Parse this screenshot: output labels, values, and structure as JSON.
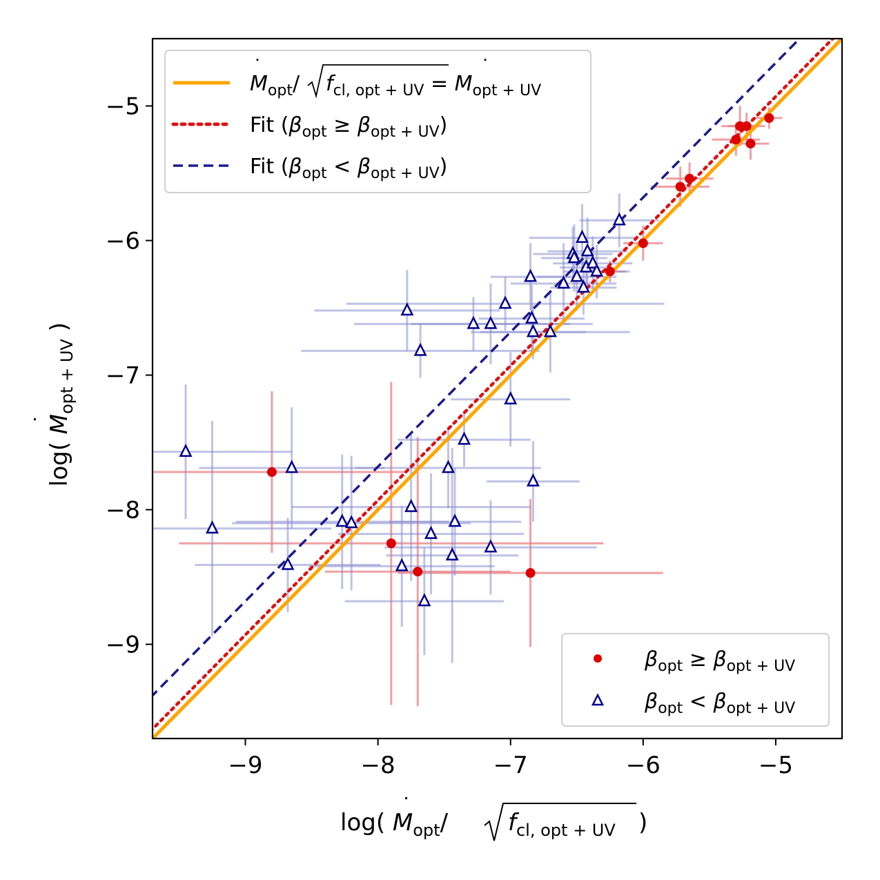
{
  "chart_data": {
    "type": "scatter",
    "xlabel": "log( Ṁ_opt / √ f_cl,opt+UV )",
    "ylabel": "log( Ṁ_opt+UV )",
    "xlim": [
      -9.7,
      -4.5
    ],
    "ylim": [
      -9.7,
      -4.5
    ],
    "xticks": [
      -9,
      -8,
      -7,
      -6,
      -5
    ],
    "yticks": [
      -9,
      -8,
      -7,
      -6,
      -5
    ],
    "xtick_labels": [
      "−9",
      "−8",
      "−7",
      "−6",
      "−5"
    ],
    "ytick_labels": [
      "−9",
      "−8",
      "−7",
      "−6",
      "−5"
    ],
    "lines": [
      {
        "name": "M_opt/sqrt(f_cl,opt+UV) = M_opt+UV",
        "style": "solid",
        "color": "#ffa500",
        "slope": 1.0,
        "intercept": 0.0
      },
      {
        "name": "Fit (beta_opt >= beta_opt+UV)",
        "style": "dotted",
        "color": "#dd1111",
        "slope": 1.0,
        "intercept": 0.07
      },
      {
        "name": "Fit (beta_opt < beta_opt+UV)",
        "style": "dashed",
        "color": "#1a1a8c",
        "slope": 1.0,
        "intercept": 0.32
      }
    ],
    "series": [
      {
        "name": "beta_opt >= beta_opt+UV",
        "marker": "circle",
        "color": "#dd0000",
        "errcolor": "#e9787e",
        "points": [
          {
            "x": -8.8,
            "y": -7.72,
            "xerr": 1.0,
            "yerr": 0.6
          },
          {
            "x": -7.9,
            "y": -8.25,
            "xerr": 1.6,
            "yerr": 1.2
          },
          {
            "x": -7.7,
            "y": -8.46,
            "xerr": 0.7,
            "yerr": 1.0
          },
          {
            "x": -6.85,
            "y": -8.47,
            "xerr": 1.0,
            "yerr": 0.55
          },
          {
            "x": -6.25,
            "y": -6.23,
            "xerr": 0.12,
            "yerr": 0.08
          },
          {
            "x": -6.0,
            "y": -6.02,
            "xerr": 0.15,
            "yerr": 0.13
          },
          {
            "x": -5.72,
            "y": -5.6,
            "xerr": 0.22,
            "yerr": 0.15
          },
          {
            "x": -5.65,
            "y": -5.54,
            "xerr": 0.18,
            "yerr": 0.12
          },
          {
            "x": -5.3,
            "y": -5.25,
            "xerr": 0.18,
            "yerr": 0.12
          },
          {
            "x": -5.27,
            "y": -5.15,
            "xerr": 0.14,
            "yerr": 0.15
          },
          {
            "x": -5.22,
            "y": -5.15,
            "xerr": 0.14,
            "yerr": 0.1
          },
          {
            "x": -5.19,
            "y": -5.28,
            "xerr": 0.14,
            "yerr": 0.12
          },
          {
            "x": -5.05,
            "y": -5.09,
            "xerr": 0.1,
            "yerr": 0.08
          }
        ]
      },
      {
        "name": "beta_opt < beta_opt+UV",
        "marker": "triangle",
        "color": "#00008b",
        "errcolor": "#8a8fd0",
        "points": [
          {
            "x": -9.45,
            "y": -7.57,
            "xerr": 0.8,
            "yerr": 0.5
          },
          {
            "x": -9.25,
            "y": -8.14,
            "xerr": 0.9,
            "yerr": 0.8
          },
          {
            "x": -8.68,
            "y": -8.41,
            "xerr": 0.7,
            "yerr": 0.35
          },
          {
            "x": -8.65,
            "y": -7.69,
            "xerr": 0.7,
            "yerr": 0.45
          },
          {
            "x": -8.27,
            "y": -8.09,
            "xerr": 0.8,
            "yerr": 0.5
          },
          {
            "x": -8.2,
            "y": -8.1,
            "xerr": 0.9,
            "yerr": 0.5
          },
          {
            "x": -7.82,
            "y": -8.42,
            "xerr": 0.7,
            "yerr": 0.45
          },
          {
            "x": -7.78,
            "y": -6.52,
            "xerr": 0.7,
            "yerr": 0.3
          },
          {
            "x": -7.75,
            "y": -7.98,
            "xerr": 0.9,
            "yerr": 0.55
          },
          {
            "x": -7.68,
            "y": -6.82,
            "xerr": 0.9,
            "yerr": 0.2
          },
          {
            "x": -7.65,
            "y": -8.68,
            "xerr": 0.6,
            "yerr": 0.4
          },
          {
            "x": -7.6,
            "y": -8.18,
            "xerr": 0.7,
            "yerr": 0.45
          },
          {
            "x": -7.47,
            "y": -7.69,
            "xerr": 0.7,
            "yerr": 0.3
          },
          {
            "x": -7.44,
            "y": -8.34,
            "xerr": 0.5,
            "yerr": 0.8
          },
          {
            "x": -7.42,
            "y": -8.09,
            "xerr": 0.5,
            "yerr": 0.4
          },
          {
            "x": -7.35,
            "y": -7.48,
            "xerr": 0.5,
            "yerr": 0.2
          },
          {
            "x": -7.28,
            "y": -6.62,
            "xerr": 0.9,
            "yerr": 0.2
          },
          {
            "x": -7.15,
            "y": -6.62,
            "xerr": 0.6,
            "yerr": 0.3
          },
          {
            "x": -7.15,
            "y": -8.28,
            "xerr": 0.8,
            "yerr": 0.35
          },
          {
            "x": -7.04,
            "y": -6.47,
            "xerr": 1.2,
            "yerr": 0.2
          },
          {
            "x": -7.0,
            "y": -7.18,
            "xerr": 0.45,
            "yerr": 0.35
          },
          {
            "x": -6.85,
            "y": -6.27,
            "xerr": 0.3,
            "yerr": 0.25
          },
          {
            "x": -6.84,
            "y": -6.58,
            "xerr": 0.4,
            "yerr": 0.25
          },
          {
            "x": -6.83,
            "y": -6.68,
            "xerr": 0.4,
            "yerr": 0.2
          },
          {
            "x": -6.83,
            "y": -7.79,
            "xerr": 0.35,
            "yerr": 0.3
          },
          {
            "x": -6.7,
            "y": -6.68,
            "xerr": 0.6,
            "yerr": 0.3
          },
          {
            "x": -6.6,
            "y": -6.32,
            "xerr": 0.4,
            "yerr": 0.3
          },
          {
            "x": -6.53,
            "y": -6.1,
            "xerr": 0.3,
            "yerr": 0.2
          },
          {
            "x": -6.52,
            "y": -6.13,
            "xerr": 0.25,
            "yerr": 0.25
          },
          {
            "x": -6.5,
            "y": -6.27,
            "xerr": 0.3,
            "yerr": 0.25
          },
          {
            "x": -6.46,
            "y": -5.98,
            "xerr": 0.4,
            "yerr": 0.25
          },
          {
            "x": -6.45,
            "y": -6.35,
            "xerr": 0.25,
            "yerr": 0.2
          },
          {
            "x": -6.43,
            "y": -6.2,
            "xerr": 0.2,
            "yerr": 0.15
          },
          {
            "x": -6.42,
            "y": -6.08,
            "xerr": 0.3,
            "yerr": 0.25
          },
          {
            "x": -6.38,
            "y": -6.17,
            "xerr": 0.3,
            "yerr": 0.2
          },
          {
            "x": -6.35,
            "y": -6.23,
            "xerr": 0.25,
            "yerr": 0.2
          },
          {
            "x": -6.18,
            "y": -5.85,
            "xerr": 0.3,
            "yerr": 0.2
          }
        ]
      }
    ]
  },
  "legend_top": {
    "items": [
      {
        "key": "equality",
        "lhs": "M",
        "lhs_sub": "opt",
        "sqrt_f": "f",
        "sqrt_sub": "cl, opt + UV",
        "rhs": "= ",
        "rhs_m": "M",
        "rhs_sub": "opt + UV"
      },
      {
        "key": "fit_ge",
        "prefix": "Fit (",
        "beta": "β",
        "sub1": "opt",
        "op": " ≥ ",
        "sub2": "opt + UV",
        "suffix": ")"
      },
      {
        "key": "fit_lt",
        "prefix": "Fit (",
        "beta": "β",
        "sub1": "opt",
        "op": " < ",
        "sub2": "opt + UV",
        "suffix": ")"
      }
    ]
  },
  "legend_bottom": {
    "items": [
      {
        "key": "ge",
        "beta": "β",
        "sub1": "opt",
        "op": " ≥ ",
        "sub2": "opt + UV"
      },
      {
        "key": "lt",
        "beta": "β",
        "sub1": "opt",
        "op": " < ",
        "sub2": "opt + UV"
      }
    ]
  },
  "axis_labels": {
    "x_prefix": "log( ",
    "x_m": "M",
    "x_sub": "opt",
    "x_slash": "/ ",
    "x_f": "f",
    "x_fsub": "cl, opt + UV",
    "x_suffix": " )",
    "y_prefix": "log( ",
    "y_m": "M",
    "y_sub": "opt + UV",
    "y_suffix": " )"
  }
}
